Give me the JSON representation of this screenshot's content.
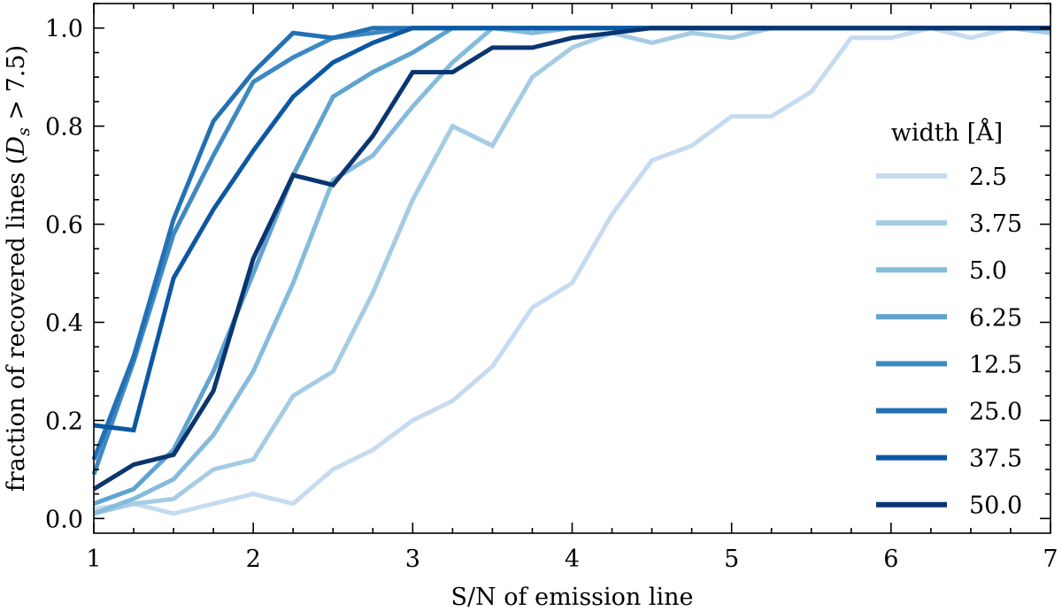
{
  "chart_data": {
    "type": "line",
    "xlabel": "S/N of emission line",
    "ylabel_prefix": "fraction of recovered lines (",
    "ylabel_var": "D",
    "ylabel_sub": "s",
    "ylabel_suffix": " > 7.5)",
    "xlim": [
      1,
      7
    ],
    "ylim": [
      -0.03,
      1.05
    ],
    "x_ticks": [
      1,
      2,
      3,
      4,
      5,
      6,
      7
    ],
    "y_ticks": [
      0.0,
      0.2,
      0.4,
      0.6,
      0.8,
      1.0
    ],
    "x_tick_labels": [
      "1",
      "2",
      "3",
      "4",
      "5",
      "6",
      "7"
    ],
    "y_tick_labels": [
      "0.0",
      "0.2",
      "0.4",
      "0.6",
      "0.8",
      "1.0"
    ],
    "grid": false,
    "legend_title": "width [Å]",
    "legend_position": "right",
    "x": [
      1.0,
      1.25,
      1.5,
      1.75,
      2.0,
      2.25,
      2.5,
      2.75,
      3.0,
      3.25,
      3.5,
      3.75,
      4.0,
      4.25,
      4.5,
      4.75,
      5.0,
      5.25,
      5.5,
      5.75,
      6.0,
      6.25,
      6.5,
      6.75,
      7.0
    ],
    "series": [
      {
        "name": "2.5",
        "color": "#c6dbef",
        "values": [
          0.02,
          0.03,
          0.01,
          0.03,
          0.05,
          0.03,
          0.1,
          0.14,
          0.2,
          0.24,
          0.31,
          0.43,
          0.48,
          0.62,
          0.73,
          0.76,
          0.82,
          0.82,
          0.87,
          0.98,
          0.98,
          1.0,
          0.98,
          1.0,
          1.0
        ]
      },
      {
        "name": "3.75",
        "color": "#a6cce4",
        "values": [
          0.01,
          0.03,
          0.04,
          0.1,
          0.12,
          0.25,
          0.3,
          0.46,
          0.65,
          0.8,
          0.76,
          0.9,
          0.96,
          0.99,
          0.97,
          0.99,
          0.98,
          1.0,
          1.0,
          1.0,
          1.0,
          1.0,
          1.0,
          1.0,
          0.99
        ]
      },
      {
        "name": "5.0",
        "color": "#85bbdc",
        "values": [
          0.01,
          0.04,
          0.08,
          0.17,
          0.3,
          0.48,
          0.69,
          0.74,
          0.84,
          0.93,
          1.0,
          0.99,
          1.0,
          1.0,
          1.0,
          1.0,
          1.0,
          1.0,
          1.0,
          1.0,
          1.0,
          1.0,
          1.0,
          1.0,
          1.0
        ]
      },
      {
        "name": "6.25",
        "color": "#5fa3d0",
        "values": [
          0.03,
          0.06,
          0.14,
          0.3,
          0.5,
          0.7,
          0.86,
          0.91,
          0.95,
          1.0,
          1.0,
          1.0,
          1.0,
          1.0,
          1.0,
          1.0,
          1.0,
          1.0,
          1.0,
          1.0,
          1.0,
          1.0,
          1.0,
          1.0,
          1.0
        ]
      },
      {
        "name": "12.5",
        "color": "#3e89c2",
        "values": [
          0.09,
          0.32,
          0.58,
          0.74,
          0.89,
          0.94,
          0.98,
          0.99,
          1.0,
          1.0,
          1.0,
          1.0,
          1.0,
          1.0,
          1.0,
          1.0,
          1.0,
          1.0,
          1.0,
          1.0,
          1.0,
          1.0,
          1.0,
          1.0,
          1.0
        ]
      },
      {
        "name": "25.0",
        "color": "#2371b4",
        "values": [
          0.12,
          0.33,
          0.61,
          0.81,
          0.91,
          0.99,
          0.98,
          1.0,
          1.0,
          1.0,
          1.0,
          1.0,
          1.0,
          1.0,
          1.0,
          1.0,
          1.0,
          1.0,
          1.0,
          1.0,
          1.0,
          1.0,
          1.0,
          1.0,
          1.0
        ]
      },
      {
        "name": "37.5",
        "color": "#0c58a2",
        "values": [
          0.19,
          0.18,
          0.49,
          0.63,
          0.75,
          0.86,
          0.93,
          0.97,
          1.0,
          1.0,
          1.0,
          1.0,
          1.0,
          1.0,
          1.0,
          1.0,
          1.0,
          1.0,
          1.0,
          1.0,
          1.0,
          1.0,
          1.0,
          1.0,
          1.0
        ]
      },
      {
        "name": "50.0",
        "color": "#0a3570",
        "values": [
          0.06,
          0.11,
          0.13,
          0.26,
          0.53,
          0.7,
          0.68,
          0.78,
          0.91,
          0.91,
          0.96,
          0.96,
          0.98,
          0.99,
          1.0,
          1.0,
          1.0,
          1.0,
          1.0,
          1.0,
          1.0,
          1.0,
          1.0,
          1.0,
          1.0
        ]
      }
    ]
  }
}
